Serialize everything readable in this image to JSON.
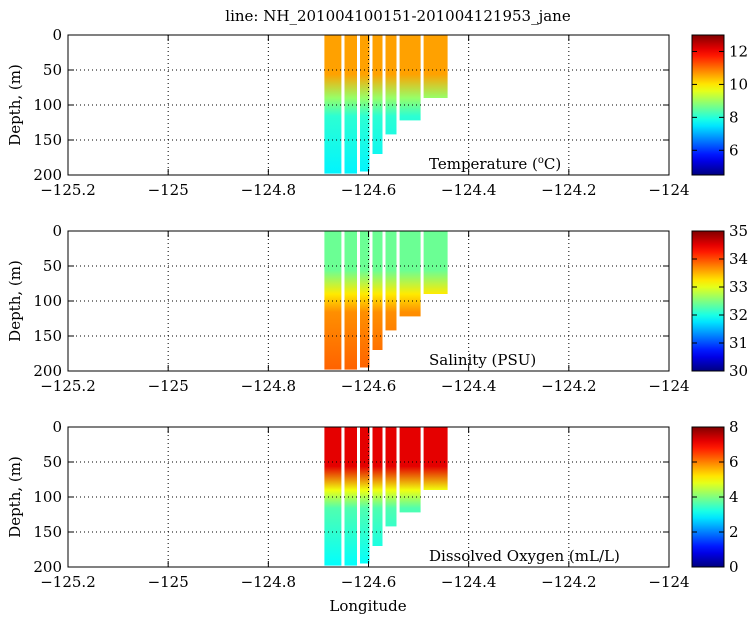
{
  "title": "line: NH_201004100151-201004121953_jane",
  "xlabel": "Longitude",
  "chart_data": [
    {
      "type": "heatmap",
      "variable": "Temperature",
      "label": "Temperature (",
      "label_sup": "o",
      "label_end": "C)",
      "ylabel": "Depth, (m)",
      "xlim": [
        -125.2,
        -124
      ],
      "ylim": [
        200,
        0
      ],
      "x_ticks": [
        "−125.2",
        "−125",
        "−124.8",
        "−124.6",
        "−124.4",
        "−124.2",
        "−124"
      ],
      "y_ticks": [
        "0",
        "50",
        "100",
        "150",
        "200"
      ],
      "colorbar": {
        "min": 4.5,
        "max": 13,
        "ticks": [
          "6",
          "8",
          "10",
          "12"
        ]
      },
      "surface_value": 10.6,
      "deep_value": 7.6,
      "casts": [
        {
          "lon": -124.688,
          "bottom": 198
        },
        {
          "lon": -124.648,
          "bottom": 198
        },
        {
          "lon": -124.617,
          "bottom": 195
        },
        {
          "lon": -124.592,
          "bottom": 170
        },
        {
          "lon": -124.566,
          "bottom": 142
        },
        {
          "lon": -124.538,
          "bottom": 122
        },
        {
          "lon": -124.49,
          "bottom": 90
        }
      ]
    },
    {
      "type": "heatmap",
      "variable": "Salinity",
      "label": "Salinity (PSU)",
      "ylabel": "Depth, (m)",
      "xlim": [
        -125.2,
        -124
      ],
      "ylim": [
        200,
        0
      ],
      "x_ticks": [
        "−125.2",
        "−125",
        "−124.8",
        "−124.6",
        "−124.4",
        "−124.2",
        "−124"
      ],
      "y_ticks": [
        "0",
        "50",
        "100",
        "150",
        "200"
      ],
      "colorbar": {
        "min": 30,
        "max": 35,
        "ticks": [
          "30",
          "31",
          "32",
          "33",
          "34",
          "35"
        ]
      },
      "surface_value": 32.4,
      "deep_value": 33.9,
      "casts": [
        {
          "lon": -124.688,
          "bottom": 198
        },
        {
          "lon": -124.648,
          "bottom": 198
        },
        {
          "lon": -124.617,
          "bottom": 195
        },
        {
          "lon": -124.592,
          "bottom": 170
        },
        {
          "lon": -124.566,
          "bottom": 142
        },
        {
          "lon": -124.538,
          "bottom": 122
        },
        {
          "lon": -124.49,
          "bottom": 90
        }
      ]
    },
    {
      "type": "heatmap",
      "variable": "Dissolved Oxygen",
      "label": "Dissolved Oxygen (mL/L)",
      "ylabel": "Depth, (m)",
      "xlim": [
        -125.2,
        -124
      ],
      "ylim": [
        200,
        0
      ],
      "x_ticks": [
        "−125.2",
        "−125",
        "−124.8",
        "−124.6",
        "−124.4",
        "−124.2",
        "−124"
      ],
      "y_ticks": [
        "0",
        "50",
        "100",
        "150",
        "200"
      ],
      "colorbar": {
        "min": 0,
        "max": 8,
        "ticks": [
          "0",
          "2",
          "4",
          "6",
          "8"
        ]
      },
      "surface_value": 7.2,
      "deep_value": 3.0,
      "casts": [
        {
          "lon": -124.688,
          "bottom": 198
        },
        {
          "lon": -124.648,
          "bottom": 198
        },
        {
          "lon": -124.617,
          "bottom": 195
        },
        {
          "lon": -124.592,
          "bottom": 170
        },
        {
          "lon": -124.566,
          "bottom": 142
        },
        {
          "lon": -124.538,
          "bottom": 122
        },
        {
          "lon": -124.49,
          "bottom": 90
        }
      ]
    }
  ]
}
